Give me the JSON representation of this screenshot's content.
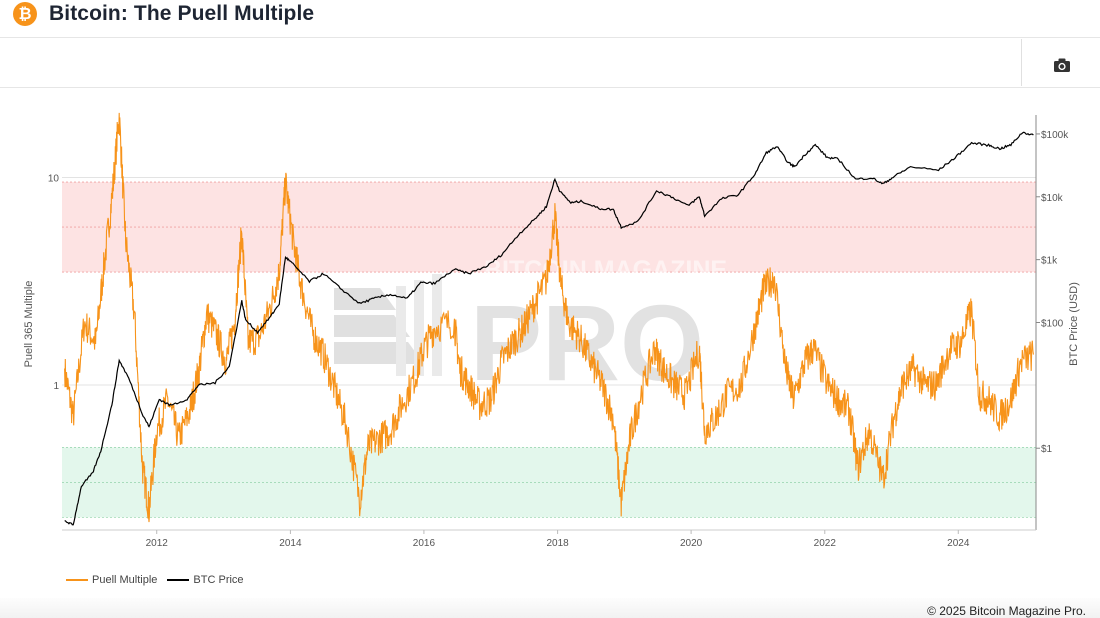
{
  "header": {
    "logo_glyph": "₿",
    "title": "Bitcoin: The Puell Multiple"
  },
  "toolbar": {
    "camera_icon": "camera-icon"
  },
  "watermark": {
    "top_text": "BITCOIN MAGAZINE",
    "main_text": "PRO"
  },
  "footer": {
    "copyright": "© 2025 Bitcoin Magazine Pro."
  },
  "colors": {
    "puell": "#f7931a",
    "btc_price": "#000000",
    "red_band": "#fde3e3",
    "green_band": "#e3f7ec"
  },
  "chart_data": {
    "type": "line",
    "x_axis": {
      "type": "date",
      "range": [
        "2010-08-01",
        "2025-03-01"
      ],
      "tick_labels": [
        "2012",
        "2014",
        "2016",
        "2018",
        "2020",
        "2022",
        "2024"
      ]
    },
    "y_left": {
      "title": "Puell 365 Multiple",
      "scale": "log",
      "range": [
        0.2,
        20
      ],
      "tick_labels": [
        "1",
        "10"
      ]
    },
    "y_right": {
      "title": "BTC Price (USD)",
      "scale": "log",
      "range": [
        0.05,
        200000
      ],
      "tick_labels": [
        "$1",
        "$100",
        "$1k",
        "$10k",
        "$100k"
      ],
      "tick_values": [
        1,
        100,
        1000,
        10000,
        100000
      ]
    },
    "bands": [
      {
        "name": "red",
        "y_from": 3.5,
        "y_to": 9.5
      },
      {
        "name": "green",
        "y_from": 0.23,
        "y_to": 0.5
      }
    ],
    "legend": {
      "position": "bottom-left",
      "items": [
        "Puell Multiple",
        "BTC Price"
      ]
    },
    "series": [
      {
        "name": "Puell Multiple",
        "axis": "left",
        "points": [
          [
            "2010-08-15",
            1.2
          ],
          [
            "2010-10-01",
            0.7
          ],
          [
            "2010-12-01",
            2.0
          ],
          [
            "2011-02-01",
            1.6
          ],
          [
            "2011-03-15",
            3.5
          ],
          [
            "2011-05-01",
            8
          ],
          [
            "2011-06-10",
            20
          ],
          [
            "2011-07-15",
            5
          ],
          [
            "2011-09-01",
            2.2
          ],
          [
            "2011-10-15",
            0.4
          ],
          [
            "2011-11-20",
            0.25
          ],
          [
            "2012-01-01",
            0.6
          ],
          [
            "2012-03-01",
            0.85
          ],
          [
            "2012-05-01",
            0.55
          ],
          [
            "2012-07-01",
            0.75
          ],
          [
            "2012-08-20",
            1.2
          ],
          [
            "2012-10-01",
            2.2
          ],
          [
            "2012-11-28",
            1.7
          ],
          [
            "2013-01-15",
            1.3
          ],
          [
            "2013-03-01",
            2.0
          ],
          [
            "2013-04-10",
            5.5
          ],
          [
            "2013-05-15",
            1.6
          ],
          [
            "2013-07-15",
            1.7
          ],
          [
            "2013-09-15",
            2.4
          ],
          [
            "2013-11-01",
            3.5
          ],
          [
            "2013-12-05",
            9.5
          ],
          [
            "2014-01-15",
            5
          ],
          [
            "2014-03-01",
            3
          ],
          [
            "2014-05-01",
            1.8
          ],
          [
            "2014-07-01",
            1.4
          ],
          [
            "2014-09-01",
            0.95
          ],
          [
            "2014-11-01",
            0.65
          ],
          [
            "2015-01-15",
            0.28
          ],
          [
            "2015-03-01",
            0.5
          ],
          [
            "2015-05-01",
            0.55
          ],
          [
            "2015-07-01",
            0.6
          ],
          [
            "2015-09-01",
            0.8
          ],
          [
            "2015-11-15",
            1.1
          ],
          [
            "2016-01-01",
            1.5
          ],
          [
            "2016-03-01",
            1.9
          ],
          [
            "2016-06-15",
            2.0
          ],
          [
            "2016-07-15",
            1.2
          ],
          [
            "2016-09-01",
            1.0
          ],
          [
            "2016-11-01",
            0.8
          ],
          [
            "2017-01-01",
            0.85
          ],
          [
            "2017-03-01",
            1.3
          ],
          [
            "2017-05-01",
            1.6
          ],
          [
            "2017-07-01",
            1.9
          ],
          [
            "2017-09-01",
            2.5
          ],
          [
            "2017-11-01",
            3.2
          ],
          [
            "2017-12-17",
            6.5
          ],
          [
            "2018-01-20",
            3.0
          ],
          [
            "2018-03-01",
            2.0
          ],
          [
            "2018-05-01",
            1.7
          ],
          [
            "2018-07-01",
            1.3
          ],
          [
            "2018-09-01",
            1.0
          ],
          [
            "2018-11-01",
            0.7
          ],
          [
            "2018-12-15",
            0.27
          ],
          [
            "2019-02-01",
            0.55
          ],
          [
            "2019-04-01",
            0.9
          ],
          [
            "2019-06-15",
            1.5
          ],
          [
            "2019-08-01",
            1.2
          ],
          [
            "2019-10-01",
            1.0
          ],
          [
            "2019-12-01",
            0.9
          ],
          [
            "2020-02-15",
            1.5
          ],
          [
            "2020-03-15",
            0.6
          ],
          [
            "2020-05-15",
            0.7
          ],
          [
            "2020-07-15",
            0.9
          ],
          [
            "2020-10-01",
            1.0
          ],
          [
            "2020-12-15",
            1.9
          ],
          [
            "2021-02-01",
            2.9
          ],
          [
            "2021-04-01",
            3.3
          ],
          [
            "2021-06-01",
            1.2
          ],
          [
            "2021-07-15",
            0.85
          ],
          [
            "2021-09-15",
            1.3
          ],
          [
            "2021-11-01",
            1.5
          ],
          [
            "2022-01-15",
            1.0
          ],
          [
            "2022-03-15",
            0.85
          ],
          [
            "2022-05-15",
            0.75
          ],
          [
            "2022-07-01",
            0.4
          ],
          [
            "2022-09-01",
            0.6
          ],
          [
            "2022-11-15",
            0.35
          ],
          [
            "2023-01-15",
            0.7
          ],
          [
            "2023-03-01",
            1.0
          ],
          [
            "2023-05-01",
            1.2
          ],
          [
            "2023-07-01",
            1.0
          ],
          [
            "2023-09-01",
            1.0
          ],
          [
            "2023-11-15",
            1.5
          ],
          [
            "2024-01-15",
            1.6
          ],
          [
            "2024-03-12",
            2.3
          ],
          [
            "2024-04-25",
            0.9
          ],
          [
            "2024-06-15",
            0.85
          ],
          [
            "2024-08-15",
            0.7
          ],
          [
            "2024-10-15",
            0.85
          ],
          [
            "2024-12-10",
            1.3
          ],
          [
            "2025-02-15",
            1.4
          ]
        ]
      },
      {
        "name": "BTC Price",
        "axis": "right",
        "points": [
          [
            "2010-08-15",
            0.07
          ],
          [
            "2010-10-01",
            0.06
          ],
          [
            "2010-11-15",
            0.25
          ],
          [
            "2011-01-15",
            0.4
          ],
          [
            "2011-03-01",
            0.9
          ],
          [
            "2011-05-01",
            5
          ],
          [
            "2011-06-10",
            25
          ],
          [
            "2011-08-01",
            13
          ],
          [
            "2011-10-15",
            3.5
          ],
          [
            "2011-11-20",
            2.2
          ],
          [
            "2012-01-15",
            6
          ],
          [
            "2012-03-15",
            4.8
          ],
          [
            "2012-06-15",
            6
          ],
          [
            "2012-08-15",
            10
          ],
          [
            "2012-11-15",
            11
          ],
          [
            "2013-02-01",
            20
          ],
          [
            "2013-04-10",
            220
          ],
          [
            "2013-05-01",
            110
          ],
          [
            "2013-07-05",
            70
          ],
          [
            "2013-09-15",
            125
          ],
          [
            "2013-11-01",
            200
          ],
          [
            "2013-12-05",
            1100
          ],
          [
            "2014-01-15",
            850
          ],
          [
            "2014-04-15",
            450
          ],
          [
            "2014-07-01",
            600
          ],
          [
            "2014-10-01",
            350
          ],
          [
            "2015-01-15",
            200
          ],
          [
            "2015-04-01",
            240
          ],
          [
            "2015-07-01",
            280
          ],
          [
            "2015-10-01",
            240
          ],
          [
            "2015-12-15",
            430
          ],
          [
            "2016-03-01",
            420
          ],
          [
            "2016-06-15",
            700
          ],
          [
            "2016-09-01",
            600
          ],
          [
            "2016-12-15",
            800
          ],
          [
            "2017-03-01",
            1200
          ],
          [
            "2017-06-01",
            2500
          ],
          [
            "2017-09-01",
            4500
          ],
          [
            "2017-11-01",
            7000
          ],
          [
            "2017-12-17",
            19000
          ],
          [
            "2018-01-15",
            12000
          ],
          [
            "2018-03-15",
            8000
          ],
          [
            "2018-05-15",
            8500
          ],
          [
            "2018-08-15",
            6500
          ],
          [
            "2018-11-01",
            6300
          ],
          [
            "2018-12-15",
            3300
          ],
          [
            "2019-03-15",
            4000
          ],
          [
            "2019-06-26",
            12500
          ],
          [
            "2019-09-15",
            10000
          ],
          [
            "2019-12-15",
            7200
          ],
          [
            "2020-02-15",
            10000
          ],
          [
            "2020-03-15",
            5000
          ],
          [
            "2020-06-15",
            9300
          ],
          [
            "2020-09-15",
            10800
          ],
          [
            "2020-12-15",
            23000
          ],
          [
            "2021-02-15",
            50000
          ],
          [
            "2021-04-14",
            63000
          ],
          [
            "2021-06-15",
            35000
          ],
          [
            "2021-07-20",
            30000
          ],
          [
            "2021-09-15",
            47000
          ],
          [
            "2021-11-10",
            67000
          ],
          [
            "2022-01-15",
            42000
          ],
          [
            "2022-03-15",
            40000
          ],
          [
            "2022-06-18",
            19000
          ],
          [
            "2022-09-15",
            20000
          ],
          [
            "2022-11-15",
            16000
          ],
          [
            "2023-01-15",
            21000
          ],
          [
            "2023-04-15",
            30000
          ],
          [
            "2023-09-15",
            26500
          ],
          [
            "2023-12-15",
            42000
          ],
          [
            "2024-03-14",
            72000
          ],
          [
            "2024-06-15",
            66000
          ],
          [
            "2024-08-15",
            58000
          ],
          [
            "2024-10-15",
            67000
          ],
          [
            "2024-12-17",
            106000
          ],
          [
            "2025-02-15",
            96000
          ]
        ]
      }
    ]
  }
}
